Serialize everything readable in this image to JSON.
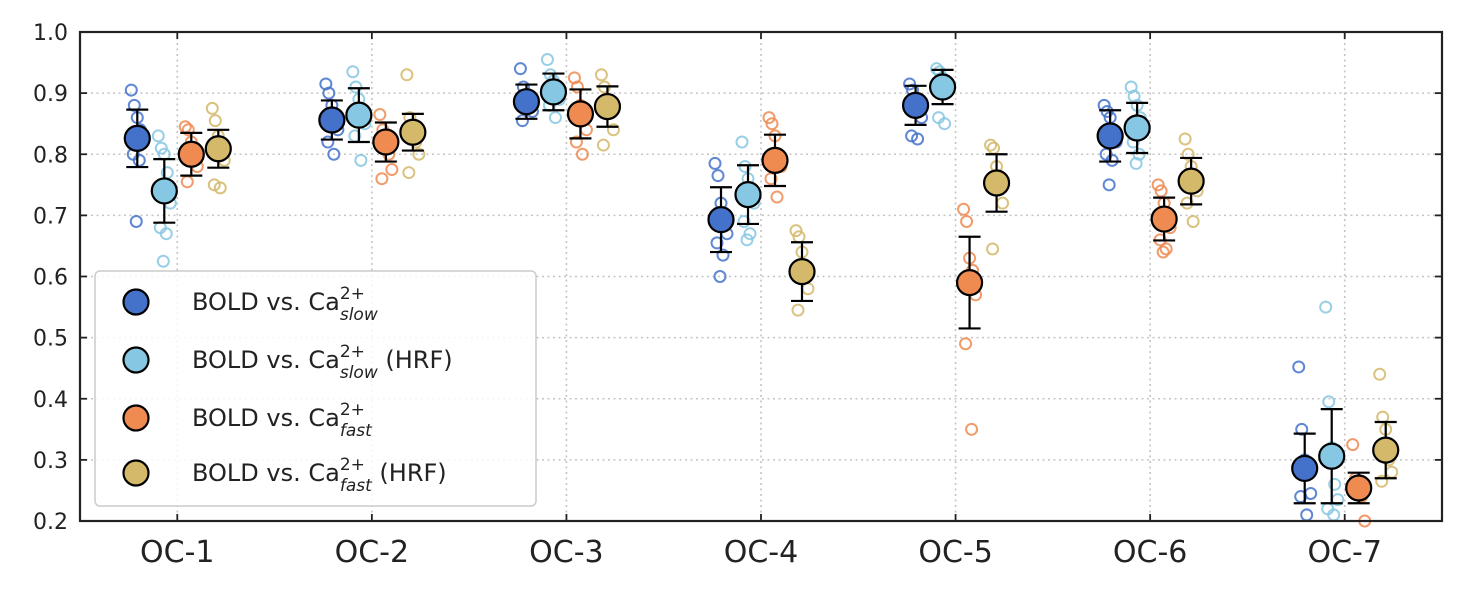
{
  "chart_data": {
    "type": "scatter",
    "categories": [
      "OC-1",
      "OC-2",
      "OC-3",
      "OC-4",
      "OC-5",
      "OC-6",
      "OC-7"
    ],
    "ylim": [
      0.2,
      1.0
    ],
    "yticks": [
      "0.2",
      "0.3",
      "0.4",
      "0.5",
      "0.6",
      "0.7",
      "0.8",
      "0.9",
      "1.0"
    ],
    "grid": true,
    "legend_position": "lower-left",
    "series": [
      {
        "legend": {
          "base": "BOLD vs. Ca",
          "sup": "2+",
          "sub": "slow",
          "suffix": ""
        },
        "color": "#4472CA",
        "means": [
          0.826,
          0.856,
          0.886,
          0.693,
          0.88,
          0.83,
          0.286
        ],
        "errors": [
          0.047,
          0.032,
          0.028,
          0.053,
          0.032,
          0.042,
          0.057
        ],
        "points": [
          [
            0.905,
            0.88,
            0.86,
            0.84,
            0.83,
            0.8,
            0.79,
            0.69
          ],
          [
            0.915,
            0.9,
            0.88,
            0.86,
            0.84,
            0.82,
            0.8
          ],
          [
            0.94,
            0.91,
            0.895,
            0.88,
            0.87,
            0.855
          ],
          [
            0.785,
            0.765,
            0.72,
            0.7,
            0.67,
            0.655,
            0.635,
            0.6
          ],
          [
            0.915,
            0.905,
            0.89,
            0.875,
            0.86,
            0.83,
            0.825
          ],
          [
            0.88,
            0.87,
            0.86,
            0.84,
            0.82,
            0.8,
            0.79,
            0.75
          ],
          [
            0.452,
            0.35,
            0.3,
            0.28,
            0.245,
            0.24,
            0.21
          ]
        ]
      },
      {
        "legend": {
          "base": "BOLD vs. Ca",
          "sup": "2+",
          "sub": "slow",
          "suffix": " (HRF)"
        },
        "color": "#86C7E3",
        "means": [
          0.74,
          0.864,
          0.902,
          0.734,
          0.91,
          0.843,
          0.306
        ],
        "errors": [
          0.052,
          0.044,
          0.03,
          0.048,
          0.028,
          0.041,
          0.077
        ],
        "points": [
          [
            0.83,
            0.81,
            0.8,
            0.77,
            0.72,
            0.68,
            0.67,
            0.625
          ],
          [
            0.935,
            0.91,
            0.89,
            0.87,
            0.85,
            0.83,
            0.79
          ],
          [
            0.955,
            0.93,
            0.92,
            0.905,
            0.89,
            0.88,
            0.86
          ],
          [
            0.82,
            0.78,
            0.76,
            0.74,
            0.72,
            0.69,
            0.67,
            0.66
          ],
          [
            0.94,
            0.935,
            0.925,
            0.92,
            0.91,
            0.86,
            0.85
          ],
          [
            0.91,
            0.895,
            0.88,
            0.86,
            0.84,
            0.82,
            0.8,
            0.785
          ],
          [
            0.55,
            0.395,
            0.32,
            0.26,
            0.235,
            0.22,
            0.21
          ]
        ]
      },
      {
        "legend": {
          "base": "BOLD vs. Ca",
          "sup": "2+",
          "sub": "fast",
          "suffix": ""
        },
        "color": "#EF8A51",
        "means": [
          0.8,
          0.82,
          0.866,
          0.79,
          0.59,
          0.694,
          0.254
        ],
        "errors": [
          0.035,
          0.032,
          0.04,
          0.042,
          0.075,
          0.035,
          0.025
        ],
        "points": [
          [
            0.845,
            0.84,
            0.82,
            0.8,
            0.78,
            0.755
          ],
          [
            0.865,
            0.84,
            0.82,
            0.8,
            0.775,
            0.76
          ],
          [
            0.925,
            0.91,
            0.88,
            0.86,
            0.84,
            0.82,
            0.8
          ],
          [
            0.86,
            0.85,
            0.83,
            0.8,
            0.78,
            0.76,
            0.73
          ],
          [
            0.71,
            0.69,
            0.63,
            0.61,
            0.57,
            0.49,
            0.35
          ],
          [
            0.75,
            0.74,
            0.72,
            0.7,
            0.68,
            0.66,
            0.645,
            0.64
          ],
          [
            0.325,
            0.27,
            0.255,
            0.24,
            0.2
          ]
        ]
      },
      {
        "legend": {
          "base": "BOLD vs. Ca",
          "sup": "2+",
          "sub": "fast",
          "suffix": " (HRF)"
        },
        "color": "#D4B96A",
        "means": [
          0.809,
          0.836,
          0.878,
          0.608,
          0.753,
          0.756,
          0.316
        ],
        "errors": [
          0.031,
          0.03,
          0.033,
          0.048,
          0.047,
          0.038,
          0.046
        ],
        "points": [
          [
            0.875,
            0.855,
            0.83,
            0.81,
            0.79,
            0.75,
            0.745
          ],
          [
            0.93,
            0.86,
            0.84,
            0.82,
            0.8,
            0.77
          ],
          [
            0.93,
            0.91,
            0.89,
            0.87,
            0.84,
            0.815
          ],
          [
            0.675,
            0.665,
            0.64,
            0.61,
            0.58,
            0.545
          ],
          [
            0.815,
            0.81,
            0.78,
            0.745,
            0.72,
            0.645
          ],
          [
            0.825,
            0.8,
            0.78,
            0.76,
            0.74,
            0.72,
            0.69
          ],
          [
            0.44,
            0.37,
            0.35,
            0.3,
            0.28,
            0.265
          ]
        ]
      }
    ]
  }
}
